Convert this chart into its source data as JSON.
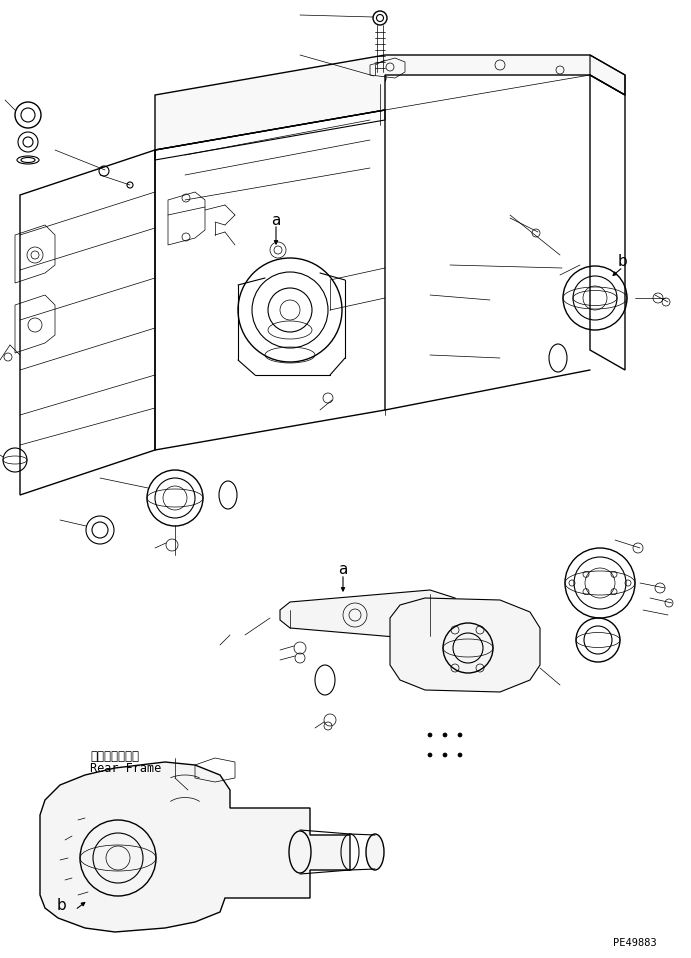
{
  "background_color": "#ffffff",
  "line_color": "#000000",
  "figure_width": 6.91,
  "figure_height": 9.58,
  "dpi": 100,
  "label_a1": "a",
  "label_a2": "a",
  "label_b1": "b",
  "label_b2": "b",
  "label_rear_frame_jp": "リヤーフレーム",
  "label_rear_frame_en": "Rear Frame",
  "part_number": "PE49883"
}
